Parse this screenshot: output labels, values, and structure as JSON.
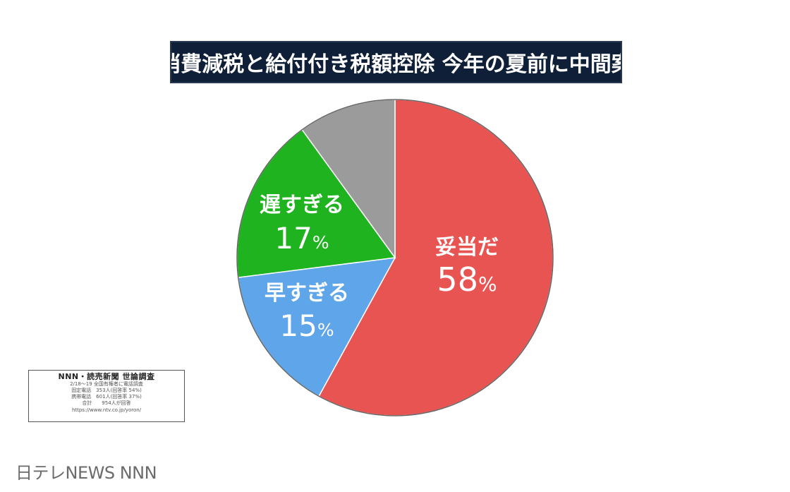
{
  "title": "消費減税と給付付き税額控除 今年の夏前に中間案",
  "chart_data": {
    "type": "pie",
    "slices": [
      {
        "label": "妥当だ",
        "value": 58,
        "value_text": "58",
        "color": "#e85452"
      },
      {
        "label": "早すぎる",
        "value": 15,
        "value_text": "15",
        "color": "#5fa5ea"
      },
      {
        "label": "遅すぎる",
        "value": 17,
        "value_text": "17",
        "color": "#1fb31f"
      },
      {
        "label": "",
        "value": 10,
        "value_text": "",
        "color": "#9b9b9b"
      }
    ],
    "unit": "%",
    "start": "12 o'clock",
    "direction": "clockwise"
  },
  "survey": {
    "title": "NNN・読売新聞 世論調査",
    "lines": [
      "2/18～19 全国有権者に電話調査",
      "固定電話　353人(回答率 54%)",
      "携帯電話　601人(回答率 37%)",
      "合計　　954人が回答"
    ],
    "url": "https://www.ntv.co.jp/yoron/"
  },
  "source": "日テレNEWS NNN"
}
